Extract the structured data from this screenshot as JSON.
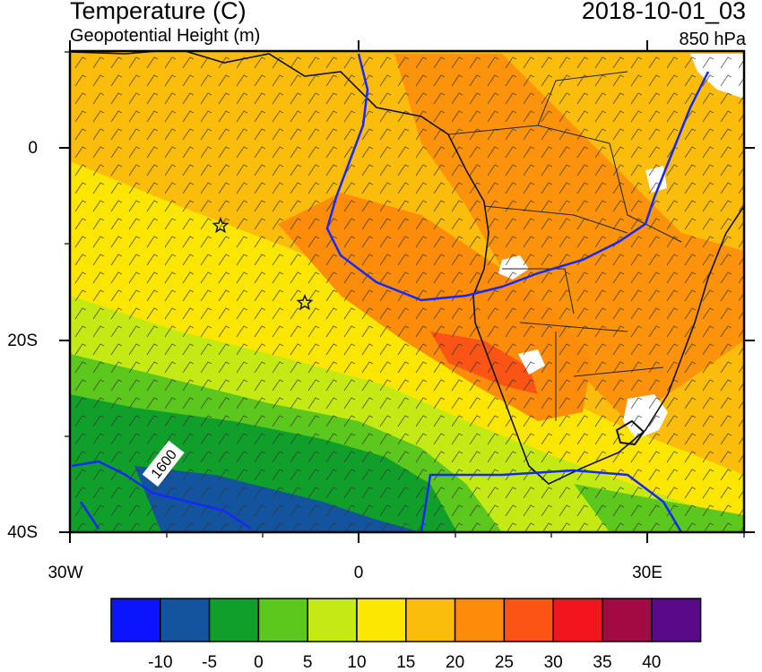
{
  "header": {
    "title": "Temperature (C)",
    "subtitle": "Geopotential Height (m)",
    "datetime": "2018-10-01_03",
    "level": "850 hPa"
  },
  "map": {
    "lat_labels": [
      "0",
      "20S",
      "40S"
    ],
    "lon_labels": [
      "30W",
      "0",
      "30E"
    ],
    "contour_label": "1600",
    "markers": [
      "star",
      "star"
    ]
  },
  "colorbar": {
    "colors": [
      "#0a14ff",
      "#12549e",
      "#10a02a",
      "#5cc81e",
      "#c4ea14",
      "#fae600",
      "#fcbc0c",
      "#fc8c0a",
      "#fc5414",
      "#f4141e",
      "#a20a44",
      "#5a0a88"
    ],
    "labels": [
      "-10",
      "-5",
      "0",
      "5",
      "10",
      "15",
      "20",
      "25",
      "30",
      "35",
      "40"
    ]
  }
}
